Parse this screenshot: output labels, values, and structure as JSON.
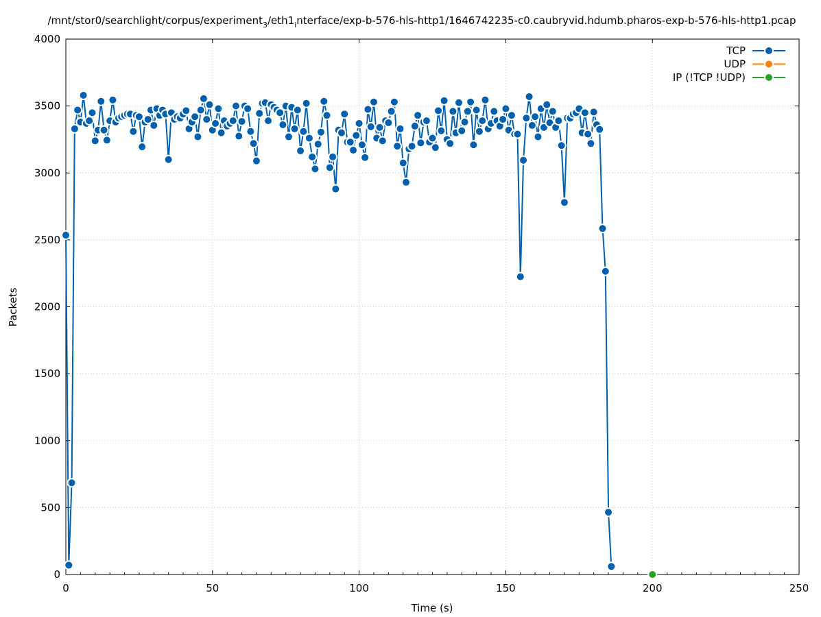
{
  "chart_data": {
    "type": "line",
    "title": {
      "prefix": "/mnt/stor0/searchlight/corpus/experiment",
      "sub": "3",
      "mid": "/eth1",
      "sub2": "i",
      "suffix": "nterface/exp-b-576-hls-http1/1646742235-c0.caubryvid.hdumb.pharos-exp-b-576-hls-http1.pcap"
    },
    "xlabel": "Time (s)",
    "ylabel": "Packets",
    "xlim": [
      0,
      250
    ],
    "ylim": [
      0,
      4000
    ],
    "xticks": [
      0,
      50,
      100,
      150,
      200,
      250
    ],
    "yticks": [
      0,
      500,
      1000,
      1500,
      2000,
      2500,
      3000,
      3500,
      4000
    ],
    "grid": true,
    "legend_position": "top-right",
    "series": [
      {
        "name": "TCP",
        "color": "#0060ad",
        "marker": "circle",
        "x": [
          0,
          1,
          2,
          3,
          4,
          5,
          6,
          7,
          8,
          9,
          10,
          11,
          12,
          13,
          14,
          15,
          16,
          17,
          18,
          19,
          20,
          21,
          22,
          23,
          24,
          25,
          26,
          27,
          28,
          29,
          30,
          31,
          32,
          33,
          34,
          35,
          36,
          37,
          38,
          39,
          40,
          41,
          42,
          43,
          44,
          45,
          46,
          47,
          48,
          49,
          50,
          51,
          52,
          53,
          54,
          55,
          56,
          57,
          58,
          59,
          60,
          61,
          62,
          63,
          64,
          65,
          66,
          67,
          68,
          69,
          70,
          71,
          72,
          73,
          74,
          75,
          76,
          77,
          78,
          79,
          80,
          81,
          82,
          83,
          84,
          85,
          86,
          87,
          88,
          89,
          90,
          91,
          92,
          93,
          94,
          95,
          96,
          97,
          98,
          99,
          100,
          101,
          102,
          103,
          104,
          105,
          106,
          107,
          108,
          109,
          110,
          111,
          112,
          113,
          114,
          115,
          116,
          117,
          118,
          119,
          120,
          121,
          122,
          123,
          124,
          125,
          126,
          127,
          128,
          129,
          130,
          131,
          132,
          133,
          134,
          135,
          136,
          137,
          138,
          139,
          140,
          141,
          142,
          143,
          144,
          145,
          146,
          147,
          148,
          149,
          150,
          151,
          152,
          153,
          154,
          155,
          156,
          157,
          158,
          159,
          160,
          161,
          162,
          163,
          164,
          165,
          166,
          167,
          168,
          169,
          170,
          171,
          172,
          173,
          174,
          175,
          176,
          177,
          178,
          179,
          180,
          181,
          182,
          183,
          184,
          185,
          186
        ],
        "y": [
          2535,
          70,
          685,
          3330,
          3470,
          3380,
          3580,
          3370,
          3390,
          3450,
          3240,
          3320,
          3535,
          3320,
          3245,
          3390,
          3545,
          3380,
          3410,
          3420,
          3430,
          3440,
          3440,
          3310,
          3430,
          3420,
          3195,
          3380,
          3400,
          3470,
          3355,
          3480,
          3430,
          3470,
          3440,
          3100,
          3450,
          3400,
          3420,
          3410,
          3440,
          3465,
          3330,
          3380,
          3420,
          3270,
          3470,
          3555,
          3400,
          3510,
          3320,
          3370,
          3480,
          3300,
          3390,
          3350,
          3370,
          3390,
          3500,
          3275,
          3385,
          3500,
          3480,
          3310,
          3220,
          3090,
          3445,
          3520,
          3525,
          3390,
          3510,
          3490,
          3470,
          3450,
          3360,
          3500,
          3270,
          3490,
          3330,
          3470,
          3165,
          3310,
          3520,
          3260,
          3120,
          3030,
          3215,
          3305,
          3535,
          3430,
          3040,
          3120,
          2880,
          3320,
          3300,
          3440,
          3230,
          3230,
          3170,
          3280,
          3370,
          3210,
          3115,
          3475,
          3345,
          3530,
          3260,
          3340,
          3240,
          3390,
          3375,
          3460,
          3530,
          3200,
          3330,
          3075,
          2930,
          3180,
          3200,
          3350,
          3430,
          3225,
          3380,
          3390,
          3230,
          3260,
          3190,
          3465,
          3315,
          3540,
          3250,
          3220,
          3460,
          3300,
          3525,
          3315,
          3380,
          3460,
          3530,
          3210,
          3470,
          3310,
          3390,
          3545,
          3330,
          3370,
          3460,
          3390,
          3350,
          3400,
          3480,
          3320,
          3430,
          3290,
          3290,
          2225,
          3095,
          3410,
          3570,
          3355,
          3420,
          3270,
          3480,
          3340,
          3510,
          3375,
          3460,
          3340,
          3390,
          3205,
          2780,
          3410,
          3410,
          3440,
          3450,
          3480,
          3300,
          3450,
          3290,
          3220,
          3455,
          3360,
          3325,
          2585,
          2265,
          465,
          60
        ]
      },
      {
        "name": "UDP",
        "color": "#ff7f0e",
        "marker": "circle",
        "x": [],
        "y": []
      },
      {
        "name": "IP (!TCP  !UDP)",
        "color": "#2ca02c",
        "marker": "circle",
        "x": [
          200
        ],
        "y": [
          0
        ]
      }
    ]
  }
}
